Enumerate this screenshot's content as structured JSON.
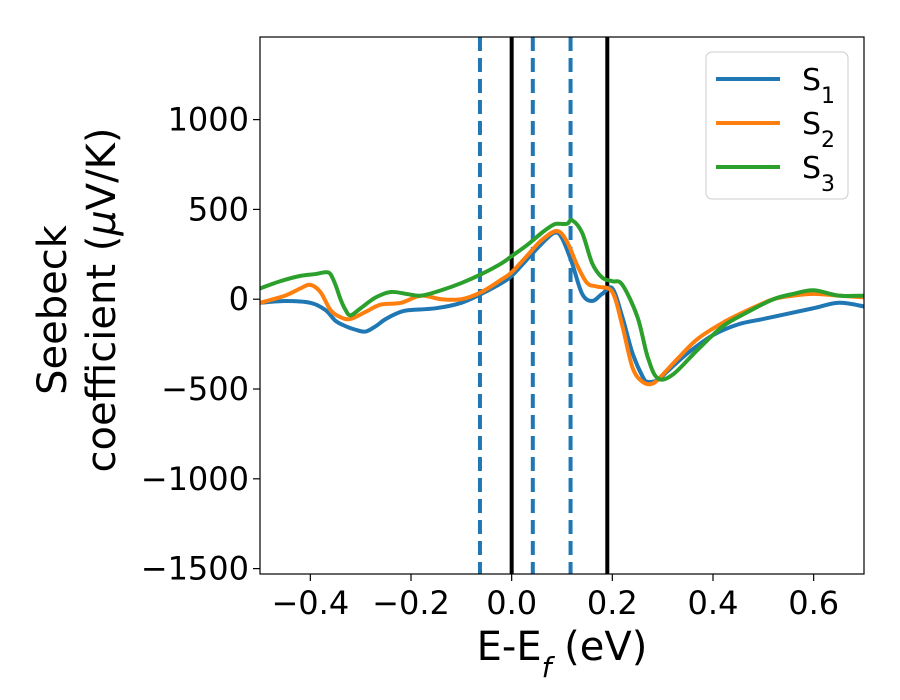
{
  "chart_data": {
    "type": "line",
    "title": "",
    "xlabel": {
      "main": "E-E",
      "sub": "f",
      "unit": " (eV)"
    },
    "ylabel": {
      "line1": "Seebeck",
      "line2": "coefficient  (",
      "mu": "μ",
      "unit": "V/K)"
    },
    "xlim": [
      -0.5,
      0.7
    ],
    "ylim": [
      -1530,
      1460
    ],
    "xticks": [
      -0.4,
      -0.2,
      0.0,
      0.2,
      0.4,
      0.6
    ],
    "xtick_labels": [
      "−0.4",
      "−0.2",
      "0.0",
      "0.2",
      "0.4",
      "0.6"
    ],
    "yticks": [
      -1500,
      -1000,
      -500,
      0,
      500,
      1000
    ],
    "ytick_labels": [
      "−1500",
      "−1000",
      "−500",
      "0",
      "500",
      "1000"
    ],
    "grid": false,
    "legend_position": "top-right",
    "vlines": [
      {
        "x": -0.063,
        "style": "dashed",
        "color": "#1f77b4"
      },
      {
        "x": 0.0,
        "style": "solid",
        "color": "#000000"
      },
      {
        "x": 0.042,
        "style": "dashed",
        "color": "#1f77b4"
      },
      {
        "x": 0.117,
        "style": "dashed",
        "color": "#1f77b4"
      },
      {
        "x": 0.19,
        "style": "solid",
        "color": "#000000"
      }
    ],
    "series": [
      {
        "name": "S",
        "sub": "1",
        "color": "#1f77b4",
        "x": [
          -0.5,
          -0.45,
          -0.4,
          -0.37,
          -0.35,
          -0.33,
          -0.31,
          -0.29,
          -0.27,
          -0.25,
          -0.22,
          -0.2,
          -0.15,
          -0.1,
          -0.06,
          -0.02,
          0.0,
          0.03,
          0.06,
          0.085,
          0.1,
          0.12,
          0.14,
          0.16,
          0.18,
          0.2,
          0.22,
          0.24,
          0.26,
          0.27,
          0.29,
          0.31,
          0.35,
          0.4,
          0.45,
          0.5,
          0.55,
          0.6,
          0.65,
          0.7
        ],
        "y": [
          -20,
          -10,
          -20,
          -60,
          -120,
          -150,
          -170,
          -180,
          -150,
          -110,
          -70,
          -60,
          -50,
          -20,
          30,
          90,
          130,
          220,
          310,
          370,
          340,
          200,
          30,
          -10,
          30,
          60,
          -100,
          -300,
          -430,
          -460,
          -450,
          -400,
          -300,
          -200,
          -140,
          -110,
          -80,
          -50,
          -20,
          -40
        ]
      },
      {
        "name": "S",
        "sub": "2",
        "color": "#ff7f0e",
        "x": [
          -0.5,
          -0.45,
          -0.42,
          -0.4,
          -0.38,
          -0.36,
          -0.34,
          -0.32,
          -0.29,
          -0.26,
          -0.22,
          -0.18,
          -0.14,
          -0.1,
          -0.06,
          -0.02,
          0.0,
          0.03,
          0.06,
          0.09,
          0.11,
          0.13,
          0.15,
          0.17,
          0.2,
          0.22,
          0.24,
          0.26,
          0.28,
          0.3,
          0.33,
          0.37,
          0.42,
          0.47,
          0.52,
          0.56,
          0.6,
          0.65,
          0.7
        ],
        "y": [
          -20,
          20,
          60,
          80,
          40,
          -60,
          -100,
          -110,
          -70,
          -30,
          -20,
          20,
          0,
          0,
          40,
          110,
          150,
          240,
          330,
          380,
          320,
          190,
          90,
          70,
          40,
          -150,
          -380,
          -460,
          -470,
          -420,
          -330,
          -220,
          -130,
          -60,
          0,
          20,
          30,
          20,
          10
        ]
      },
      {
        "name": "S",
        "sub": "3",
        "color": "#2ca02c",
        "x": [
          -0.5,
          -0.46,
          -0.42,
          -0.39,
          -0.37,
          -0.36,
          -0.35,
          -0.34,
          -0.33,
          -0.32,
          -0.3,
          -0.27,
          -0.24,
          -0.21,
          -0.18,
          -0.14,
          -0.1,
          -0.06,
          -0.02,
          0.0,
          0.03,
          0.06,
          0.08,
          0.09,
          0.11,
          0.12,
          0.14,
          0.16,
          0.18,
          0.2,
          0.22,
          0.25,
          0.27,
          0.29,
          0.32,
          0.37,
          0.42,
          0.47,
          0.52,
          0.56,
          0.6,
          0.65,
          0.7
        ],
        "y": [
          60,
          100,
          130,
          140,
          150,
          140,
          80,
          0,
          -60,
          -90,
          -50,
          10,
          40,
          30,
          20,
          50,
          90,
          140,
          200,
          240,
          300,
          370,
          410,
          420,
          420,
          440,
          370,
          200,
          120,
          100,
          80,
          -100,
          -320,
          -440,
          -420,
          -280,
          -150,
          -70,
          0,
          30,
          50,
          20,
          20
        ]
      }
    ]
  }
}
